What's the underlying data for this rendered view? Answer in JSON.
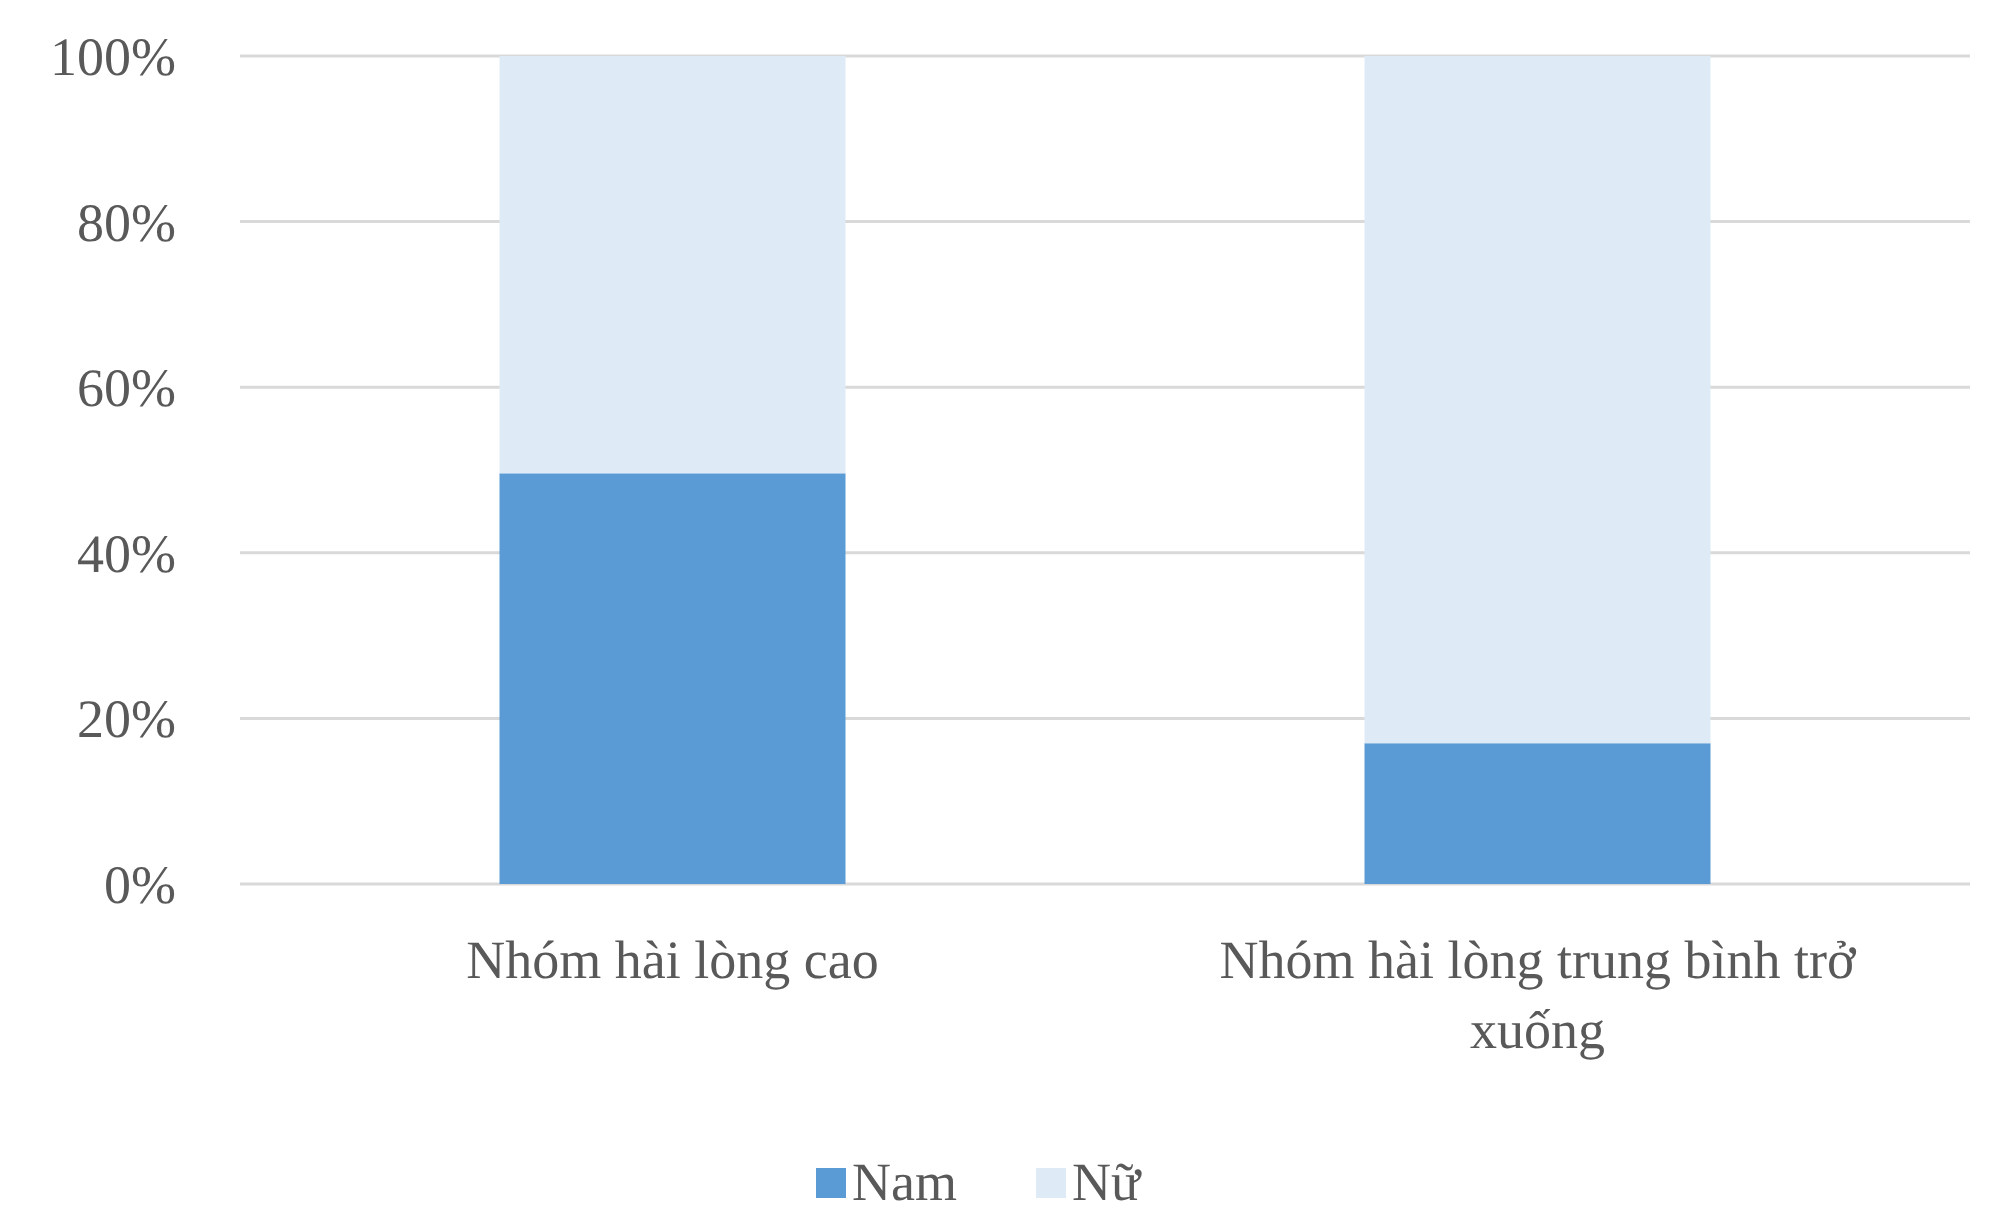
{
  "chart_data": {
    "type": "bar",
    "stacked": true,
    "categories": [
      "Nhóm hài lòng cao",
      "Nhóm hài lòng trung bình trở xuống"
    ],
    "series": [
      {
        "name": "Nam",
        "color": "#5b9bd5",
        "values": [
          49.6,
          17.0
        ]
      },
      {
        "name": "Nữ",
        "color": "#deebf7",
        "values": [
          50.4,
          83.0
        ]
      }
    ],
    "ylim": [
      0,
      100
    ],
    "yticks": [
      {
        "value": 0,
        "label": "0%"
      },
      {
        "value": 20,
        "label": "20%"
      },
      {
        "value": 40,
        "label": "40%"
      },
      {
        "value": 60,
        "label": "60%"
      },
      {
        "value": 80,
        "label": "80%"
      },
      {
        "value": 100,
        "label": "100%"
      }
    ],
    "grid": "y",
    "legend": "bottom"
  }
}
